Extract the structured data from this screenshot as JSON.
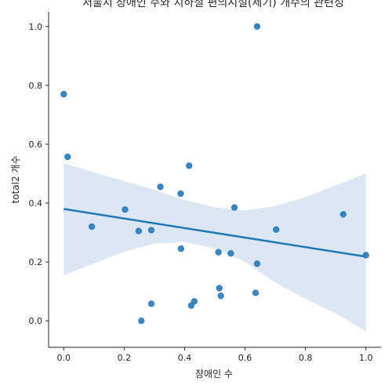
{
  "chart_data": {
    "type": "scatter",
    "title": "저물지 장애인 주와 지하철 편의시설(제기) 개수의 관련성",
    "xlabel": "장애인 수",
    "ylabel": "total2 개수",
    "xlim": [
      -0.05,
      1.05
    ],
    "ylim": [
      -0.09,
      1.05
    ],
    "x_ticks": [
      0.0,
      0.2,
      0.4,
      0.6,
      0.8,
      1.0
    ],
    "y_ticks": [
      0.0,
      0.2,
      0.4,
      0.6,
      0.8,
      1.0
    ],
    "x_tick_labels": [
      "0.0",
      "0.2",
      "0.4",
      "0.6",
      "0.8",
      "1.0"
    ],
    "y_tick_labels": [
      "0.0",
      "0.2",
      "0.4",
      "0.6",
      "0.8",
      "1.0"
    ],
    "grid": false,
    "legend": "none",
    "colors": {
      "points": "#2a7ab9",
      "line": "#1f77b4",
      "band": "#dbe7f2"
    },
    "points": [
      {
        "x": 0.0,
        "y": 0.77
      },
      {
        "x": 0.013,
        "y": 0.557
      },
      {
        "x": 0.093,
        "y": 0.32
      },
      {
        "x": 0.203,
        "y": 0.378
      },
      {
        "x": 0.248,
        "y": 0.305
      },
      {
        "x": 0.257,
        "y": 0.0
      },
      {
        "x": 0.29,
        "y": 0.308
      },
      {
        "x": 0.29,
        "y": 0.058
      },
      {
        "x": 0.32,
        "y": 0.455
      },
      {
        "x": 0.387,
        "y": 0.432
      },
      {
        "x": 0.388,
        "y": 0.245
      },
      {
        "x": 0.415,
        "y": 0.527
      },
      {
        "x": 0.422,
        "y": 0.052
      },
      {
        "x": 0.432,
        "y": 0.066
      },
      {
        "x": 0.512,
        "y": 0.233
      },
      {
        "x": 0.515,
        "y": 0.111
      },
      {
        "x": 0.52,
        "y": 0.085
      },
      {
        "x": 0.553,
        "y": 0.229
      },
      {
        "x": 0.565,
        "y": 0.385
      },
      {
        "x": 0.635,
        "y": 0.095
      },
      {
        "x": 0.64,
        "y": 0.194
      },
      {
        "x": 0.64,
        "y": 1.0
      },
      {
        "x": 0.703,
        "y": 0.31
      },
      {
        "x": 0.925,
        "y": 0.362
      },
      {
        "x": 1.0,
        "y": 0.223
      }
    ],
    "regression": {
      "x": [
        0.0,
        1.0
      ],
      "y": [
        0.38,
        0.218
      ]
    },
    "confidence_band": {
      "x": [
        0.0,
        0.1,
        0.2,
        0.3,
        0.4,
        0.5,
        0.6,
        0.7,
        0.8,
        0.9,
        1.0
      ],
      "lower": [
        0.155,
        0.195,
        0.235,
        0.262,
        0.268,
        0.245,
        0.2,
        0.13,
        0.075,
        0.025,
        -0.035
      ],
      "upper": [
        0.535,
        0.505,
        0.475,
        0.445,
        0.41,
        0.385,
        0.375,
        0.39,
        0.42,
        0.46,
        0.5
      ]
    }
  }
}
